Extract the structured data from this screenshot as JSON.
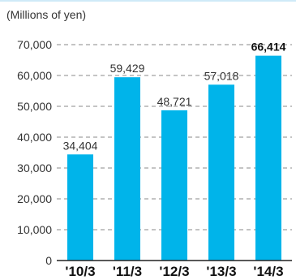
{
  "chart_data": {
    "type": "bar",
    "unit_label": "(Millions of yen)",
    "categories": [
      "'10/3",
      "'11/3",
      "'12/3",
      "'13/3",
      "'14/3"
    ],
    "values": [
      34404,
      59429,
      48721,
      57018,
      66414
    ],
    "value_labels": [
      "34,404",
      "59,429",
      "48,721",
      "57,018",
      "66,414"
    ],
    "highlighted_index": 4,
    "ylim": [
      0,
      70000
    ],
    "yticks": [
      0,
      10000,
      20000,
      30000,
      40000,
      50000,
      60000,
      70000
    ],
    "ytick_labels": [
      "0",
      "10,000",
      "20,000",
      "30,000",
      "40,000",
      "50,000",
      "60,000",
      "70,000"
    ],
    "grid": "dashed horizontal",
    "bar_color": "#00b4ea",
    "grid_color": "#8a8a8a",
    "axis_color": "#222222"
  }
}
